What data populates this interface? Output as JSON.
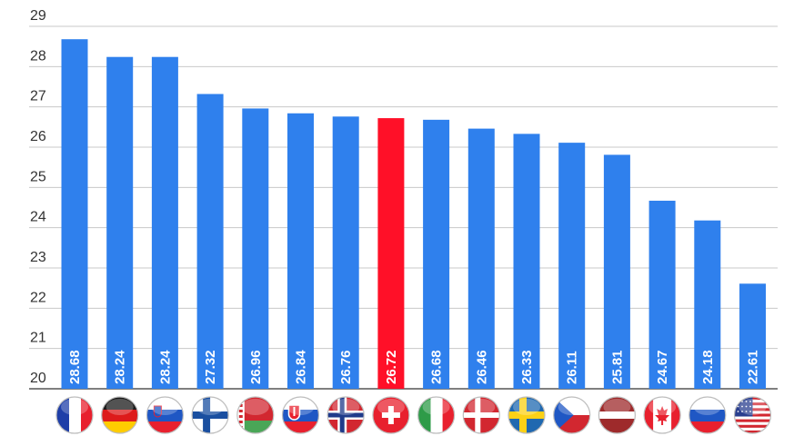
{
  "chart_data": {
    "type": "bar",
    "title": "",
    "xlabel": "",
    "ylabel": "",
    "ylim": [
      20,
      29
    ],
    "yticks": [
      20,
      21,
      22,
      23,
      24,
      25,
      26,
      27,
      28,
      29
    ],
    "grid": true,
    "categories": [
      "France",
      "Germany",
      "Slovenia",
      "Finland",
      "Belarus",
      "Slovakia",
      "Norway",
      "Switzerland",
      "Italy",
      "Denmark",
      "Sweden",
      "Czech Republic",
      "Latvia",
      "Canada",
      "Russia",
      "USA"
    ],
    "values": [
      28.68,
      28.24,
      28.24,
      27.32,
      26.96,
      26.84,
      26.76,
      26.72,
      26.68,
      26.46,
      26.33,
      26.11,
      25.81,
      24.67,
      24.18,
      22.61
    ],
    "value_labels": [
      "28.68",
      "28.24",
      "28.24",
      "27.32",
      "26.96",
      "26.84",
      "26.76",
      "26.72",
      "26.68",
      "26.46",
      "26.33",
      "26.11",
      "25.81",
      "24.67",
      "24.18",
      "22.61"
    ],
    "highlight_index": 7,
    "colors": {
      "bar": "#2f80ed",
      "highlight": "#ff1028",
      "grid": "#c8c8c8",
      "axis": "#555555"
    },
    "x_axis_icons": [
      "flag-france-icon",
      "flag-germany-icon",
      "flag-slovenia-icon",
      "flag-finland-icon",
      "flag-belarus-icon",
      "flag-slovakia-icon",
      "flag-norway-icon",
      "flag-switzerland-icon",
      "flag-italy-icon",
      "flag-denmark-icon",
      "flag-sweden-icon",
      "flag-czech-republic-icon",
      "flag-latvia-icon",
      "flag-canada-icon",
      "flag-russia-icon",
      "flag-usa-icon"
    ]
  }
}
